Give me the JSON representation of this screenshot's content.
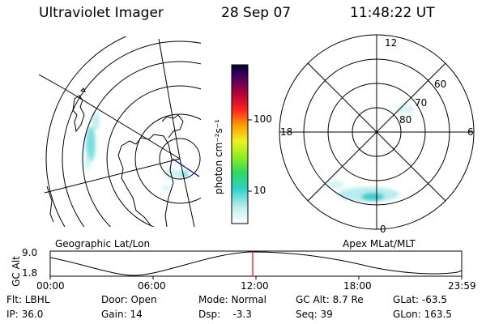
{
  "header": {
    "title": "Ultraviolet Imager",
    "date": "28 Sep 07",
    "time": "11:48:22 UT"
  },
  "colorbar": {
    "unit_label": "photon cm⁻²s⁻¹",
    "ticks": [
      "100",
      "10"
    ]
  },
  "geo_panel": {
    "caption": "Geographic Lat/Lon"
  },
  "polar_panel": {
    "caption": "Apex MLat/MLT",
    "mlt_labels": {
      "top": "12",
      "left": "18",
      "right": "6",
      "bottom": "0"
    },
    "lat_labels": [
      "60",
      "70",
      "80"
    ]
  },
  "timeline": {
    "ylabel": "GC Alt",
    "ymax": "9.0",
    "ymin": "1.8",
    "time_ticks": [
      "00:00",
      "06:00",
      "12:00",
      "18:00",
      "23:59"
    ],
    "current_marker_fraction": 0.492
  },
  "info": {
    "row1": {
      "flt": "Flt: LBHL",
      "door": "Door: Open",
      "mode": "Mode: Normal",
      "gcalt": "GC Alt: 8.7 Re",
      "glat": "GLat: -63.5"
    },
    "row2": {
      "ip": "IP: 36.0",
      "gain": "Gain: 14",
      "dsp": "Dsp:    -3.3",
      "seq": "Seq: 39",
      "glon": "GLon: 163.5"
    }
  },
  "colors": {
    "marker": "#ff0000",
    "aurora": "#40d0d0"
  }
}
